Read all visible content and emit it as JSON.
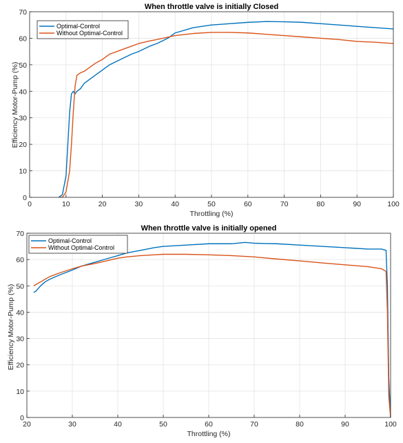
{
  "chart_data": [
    {
      "type": "line",
      "title": "When throttle valve is initially Closed",
      "xlabel": "Throttling (%)",
      "ylabel": "Efficiency Motor-Pump (%)",
      "xlim": [
        0,
        100
      ],
      "ylim": [
        0,
        70
      ],
      "xticks": [
        0,
        10,
        20,
        30,
        40,
        50,
        60,
        70,
        80,
        90,
        100
      ],
      "yticks": [
        0,
        10,
        20,
        30,
        40,
        50,
        60,
        70
      ],
      "grid": true,
      "legend_position": "top-left",
      "series": [
        {
          "name": "Optimal-Control",
          "color": "#0072BD",
          "x": [
            8,
            9,
            10,
            10.5,
            11,
            11.5,
            12,
            12.5,
            13,
            14,
            15,
            16,
            18,
            20,
            22,
            25,
            28,
            30,
            33,
            35,
            38,
            40,
            45,
            50,
            55,
            60,
            65,
            70,
            75,
            80,
            85,
            90,
            95,
            100
          ],
          "y": [
            0,
            1,
            8,
            20,
            32,
            39,
            40,
            39,
            40,
            41,
            43,
            44,
            46,
            48,
            50,
            52,
            54,
            55,
            57,
            58,
            60,
            62,
            64,
            65,
            65.5,
            66,
            66.3,
            66.2,
            66,
            65.5,
            65,
            64.5,
            64,
            63.5
          ]
        },
        {
          "name": "Without Optimal-Control",
          "color": "#D95319",
          "x": [
            8,
            9,
            10,
            11,
            11.5,
            12,
            12.5,
            13,
            14,
            15,
            16,
            18,
            20,
            22,
            25,
            28,
            30,
            33,
            35,
            40,
            45,
            50,
            55,
            60,
            65,
            70,
            75,
            80,
            85,
            90,
            95,
            100
          ],
          "y": [
            0,
            0,
            2,
            10,
            20,
            32,
            42,
            46,
            47,
            47.5,
            48.5,
            50.5,
            52,
            54,
            55.5,
            57,
            58,
            59,
            59.5,
            61,
            61.8,
            62.2,
            62.2,
            62,
            61.5,
            61,
            60.5,
            60,
            59.5,
            58.8,
            58.5,
            58
          ]
        }
      ]
    },
    {
      "type": "line",
      "title": "When throttle valve is initially opened",
      "xlabel": "Throttling (%)",
      "ylabel": "Efficiency Motor-Pump (%)",
      "xlim": [
        20,
        100
      ],
      "ylim": [
        0,
        70
      ],
      "xticks": [
        20,
        30,
        40,
        50,
        60,
        70,
        80,
        90,
        100
      ],
      "yticks": [
        0,
        10,
        20,
        30,
        40,
        50,
        60,
        70
      ],
      "grid": true,
      "legend_position": "top-left",
      "series": [
        {
          "name": "Optimal-Control",
          "color": "#0072BD",
          "x": [
            21.5,
            22,
            23,
            24,
            25,
            27,
            30,
            32,
            35,
            37,
            40,
            42,
            45,
            48,
            50,
            55,
            60,
            65,
            68,
            70,
            75,
            80,
            85,
            90,
            95,
            98,
            99,
            99.3,
            99.6,
            100
          ],
          "y": [
            47.5,
            48,
            50,
            51.5,
            52.5,
            54,
            56,
            57.5,
            59,
            60,
            61.5,
            62.5,
            63.5,
            64.5,
            65,
            65.5,
            66,
            66,
            66.5,
            66.2,
            66,
            65.5,
            65,
            64.5,
            64,
            64,
            63.5,
            50,
            15,
            0
          ]
        },
        {
          "name": "Without Optimal-Control",
          "color": "#D95319",
          "x": [
            21.5,
            22,
            23,
            24,
            25,
            27,
            30,
            32,
            35,
            37,
            40,
            42,
            45,
            48,
            50,
            55,
            60,
            65,
            70,
            75,
            80,
            85,
            90,
            95,
            98,
            99,
            99.3,
            99.6,
            100
          ],
          "y": [
            50,
            50.5,
            51.5,
            52.5,
            53.5,
            54.8,
            56.5,
            57.5,
            58.5,
            59.3,
            60.5,
            61,
            61.5,
            61.8,
            62,
            62,
            61.8,
            61.5,
            61,
            60.2,
            59.5,
            58.7,
            58,
            57.3,
            56.5,
            55.5,
            40,
            8,
            0
          ]
        }
      ]
    }
  ]
}
